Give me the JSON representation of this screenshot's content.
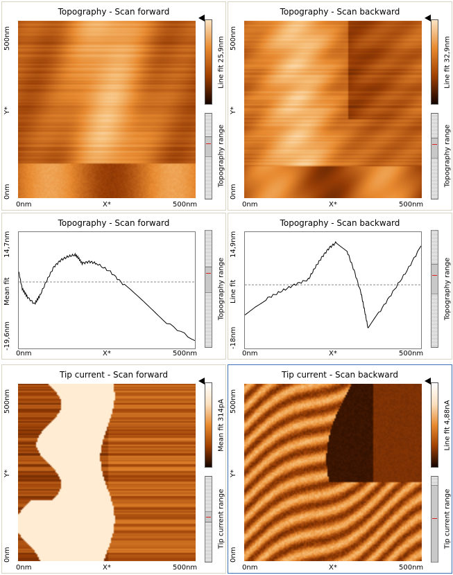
{
  "panels": [
    {
      "title": "Topography - Scan forward",
      "kind": "image",
      "scheme": "copper",
      "x_start": "0nm",
      "x_mid": "X*",
      "x_end": "500nm",
      "y_start": "0nm",
      "y_mid": "Y*",
      "y_end": "500nm",
      "colorbar_label": "Line fit 25,9nm",
      "range_label": "Topography range"
    },
    {
      "title": "Topography - Scan backward",
      "kind": "image",
      "scheme": "copper",
      "x_start": "0nm",
      "x_mid": "X*",
      "x_end": "500nm",
      "y_start": "0nm",
      "y_mid": "Y*",
      "y_end": "500nm",
      "colorbar_label": "Line fit 32,9nm",
      "range_label": "Topography range"
    },
    {
      "title": "Topography - Scan forward",
      "kind": "line",
      "x_start": "0nm",
      "x_mid": "X*",
      "x_end": "500nm",
      "y_top": "14,7nm",
      "y_mid": "Mean fit",
      "y_bottom": "-19,6nm",
      "range_label": "Topography range"
    },
    {
      "title": "Topography - Scan backward",
      "kind": "line",
      "x_start": "0nm",
      "x_mid": "X*",
      "x_end": "500nm",
      "y_top": "14,9nm",
      "y_mid": "Line fit",
      "y_bottom": "-18nm",
      "range_label": "Topography range"
    },
    {
      "title": "Tip current - Scan forward",
      "kind": "image",
      "scheme": "current",
      "x_start": "0nm",
      "x_mid": "X*",
      "x_end": "500nm",
      "y_start": "0nm",
      "y_mid": "Y*",
      "y_end": "500nm",
      "colorbar_label": "Mean fit 314pA",
      "range_label": "Tip current range"
    },
    {
      "title": "Tip current - Scan backward",
      "kind": "image",
      "scheme": "current2",
      "x_start": "0nm",
      "x_mid": "X*",
      "x_end": "500nm",
      "y_start": "0nm",
      "y_mid": "Y*",
      "y_end": "500nm",
      "colorbar_label": "Line fit 4,88nA",
      "range_label": "Tip current range"
    }
  ],
  "colors": {
    "copper_dark": "#140400",
    "copper_mid": "#c8600a",
    "copper_light": "#fbe4c4",
    "active_border": "#3a6fb5",
    "range_mark": "#d82020"
  },
  "chart_data": [
    {
      "type": "line",
      "title": "Topography - Scan forward",
      "xlabel": "X*",
      "ylabel": "Mean fit",
      "xlim": [
        0,
        500
      ],
      "ylim": [
        -19.6,
        14.7
      ],
      "x": [
        0,
        10,
        25,
        45,
        60,
        80,
        100,
        120,
        140,
        160,
        170,
        180,
        200,
        220,
        260,
        300,
        360,
        420,
        500
      ],
      "y": [
        3.0,
        -2.0,
        -4.5,
        -6.5,
        -4.0,
        0.5,
        4.5,
        6.5,
        7.5,
        8.0,
        7.0,
        5.5,
        6.0,
        5.5,
        3.0,
        -1.0,
        -6.5,
        -12.0,
        -17.3
      ],
      "reference_line": 0
    },
    {
      "type": "line",
      "title": "Topography - Scan backward",
      "xlabel": "X*",
      "ylabel": "Line fit",
      "xlim": [
        0,
        500
      ],
      "ylim": [
        -18,
        14.9
      ],
      "x": [
        0,
        30,
        60,
        100,
        140,
        180,
        200,
        220,
        240,
        260,
        290,
        310,
        330,
        340,
        350,
        380,
        420,
        460,
        500
      ],
      "y": [
        -8.5,
        -6.0,
        -4.0,
        -2.0,
        0.0,
        1.5,
        5.0,
        8.0,
        10.5,
        12.0,
        9.5,
        4.0,
        -2.5,
        -7.5,
        -12.5,
        -8.0,
        -2.0,
        4.0,
        11.0
      ],
      "reference_line": 0
    }
  ]
}
